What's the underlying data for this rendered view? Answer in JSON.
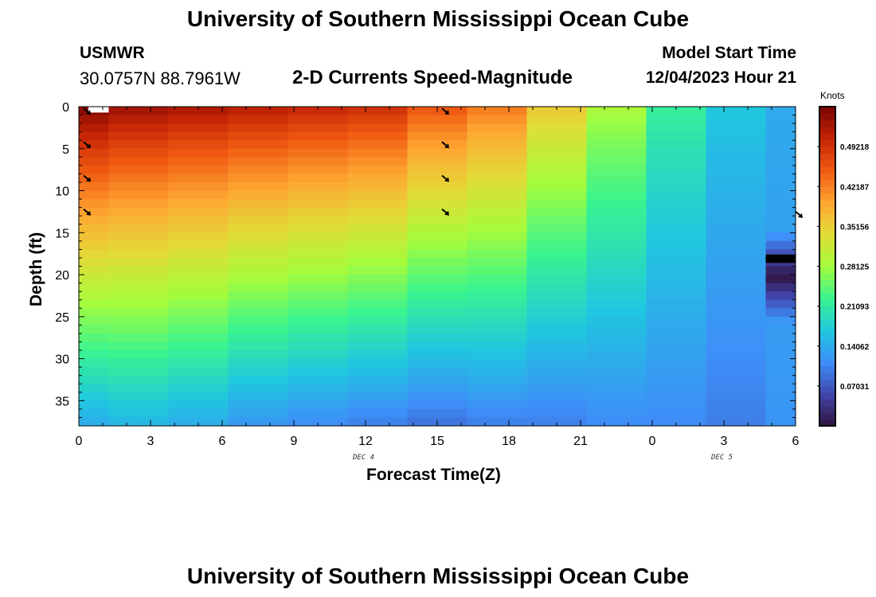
{
  "header": {
    "title_top": "University of Southern Mississippi Ocean Cube",
    "title_bottom": "University of Southern Mississippi Ocean Cube",
    "station": "USMWR",
    "coords": "30.0757N  88.7961W",
    "subtitle": "2-D Currents Speed-Magnitude",
    "model_label": "Model Start Time",
    "model_value": "12/04/2023 Hour 21"
  },
  "colors": {
    "ramp": [
      "#30123b",
      "#4145ab",
      "#3e8ef8",
      "#1fc8de",
      "#38f490",
      "#a4fc3c",
      "#e2dc38",
      "#fea632",
      "#f05b12",
      "#c52406",
      "#7a0403"
    ]
  },
  "chart_data": {
    "type": "heatmap",
    "xlabel": "Forecast Time(Z)",
    "ylabel": "Depth (ft)",
    "colorbar_units": "Knots",
    "day_labels": [
      {
        "text": "DEC 4",
        "x_hours": 15
      },
      {
        "text": "DEC 5",
        "x_hours": 27
      }
    ],
    "x_ticks": [
      {
        "hours": 0,
        "label": "0"
      },
      {
        "hours": 3,
        "label": "3"
      },
      {
        "hours": 6,
        "label": "6"
      },
      {
        "hours": 9,
        "label": "9"
      },
      {
        "hours": 12,
        "label": "12"
      },
      {
        "hours": 15,
        "label": "15"
      },
      {
        "hours": 18,
        "label": "18"
      },
      {
        "hours": 21,
        "label": "21"
      },
      {
        "hours": 24,
        "label": "0"
      },
      {
        "hours": 27,
        "label": "3"
      },
      {
        "hours": 30,
        "label": "6"
      }
    ],
    "y_ticks": [
      0,
      5,
      10,
      15,
      20,
      25,
      30,
      35
    ],
    "xlim": [
      0,
      30
    ],
    "ylim": [
      0,
      38
    ],
    "colorbar_range": [
      0,
      0.5625
    ],
    "colorbar_ticks": [
      "0.49218",
      "0.42187",
      "0.35156",
      "0.28125",
      "0.21093",
      "0.14062",
      "0.07031"
    ],
    "colorbar_tick_values": [
      0.49218,
      0.42187,
      0.35156,
      0.28125,
      0.21093,
      0.14062,
      0.07031
    ],
    "columns": [
      {
        "x_start": 0,
        "x_end": 1.25,
        "top": 0.56,
        "bottom": 0.14
      },
      {
        "x_start": 1.25,
        "x_end": 3.75,
        "top": 0.54,
        "bottom": 0.15
      },
      {
        "x_start": 3.75,
        "x_end": 6.25,
        "top": 0.53,
        "bottom": 0.14
      },
      {
        "x_start": 6.25,
        "x_end": 8.75,
        "top": 0.52,
        "bottom": 0.12
      },
      {
        "x_start": 8.75,
        "x_end": 11.25,
        "top": 0.51,
        "bottom": 0.11
      },
      {
        "x_start": 11.25,
        "x_end": 13.75,
        "top": 0.5,
        "bottom": 0.1
      },
      {
        "x_start": 13.75,
        "x_end": 16.25,
        "top": 0.46,
        "bottom": 0.09
      },
      {
        "x_start": 16.25,
        "x_end": 18.75,
        "top": 0.43,
        "bottom": 0.1
      },
      {
        "x_start": 18.75,
        "x_end": 21.25,
        "top": 0.36,
        "bottom": 0.1
      },
      {
        "x_start": 21.25,
        "x_end": 23.75,
        "top": 0.29,
        "bottom": 0.11
      },
      {
        "x_start": 23.75,
        "x_end": 26.25,
        "top": 0.22,
        "bottom": 0.11
      },
      {
        "x_start": 26.25,
        "x_end": 28.75,
        "top": 0.17,
        "bottom": 0.1
      },
      {
        "x_start": 28.75,
        "x_end": 30,
        "top": 0.14,
        "bottom": 0.12
      }
    ],
    "dark_band": {
      "x_start": 28.75,
      "x_end": 30,
      "depth_start": 14.5,
      "depth_end": 26,
      "speed": 0.02
    },
    "black_line": {
      "x_start": 28.75,
      "x_end": 30,
      "depth_start": 17.6,
      "depth_end": 18.6
    },
    "white_marker": {
      "x_start": 0.4,
      "x_end": 1.25,
      "depth_start": 0,
      "depth_end": 0.7
    },
    "vectors": [
      {
        "x_hours": 0.2,
        "depth": 0.2
      },
      {
        "x_hours": 0.2,
        "depth": 4.2
      },
      {
        "x_hours": 0.2,
        "depth": 8.2
      },
      {
        "x_hours": 0.2,
        "depth": 12.2
      },
      {
        "x_hours": 15.2,
        "depth": 0.2
      },
      {
        "x_hours": 15.2,
        "depth": 4.2
      },
      {
        "x_hours": 15.2,
        "depth": 8.2
      },
      {
        "x_hours": 15.2,
        "depth": 12.2
      },
      {
        "x_hours": 30.0,
        "depth": 12.5
      }
    ]
  }
}
